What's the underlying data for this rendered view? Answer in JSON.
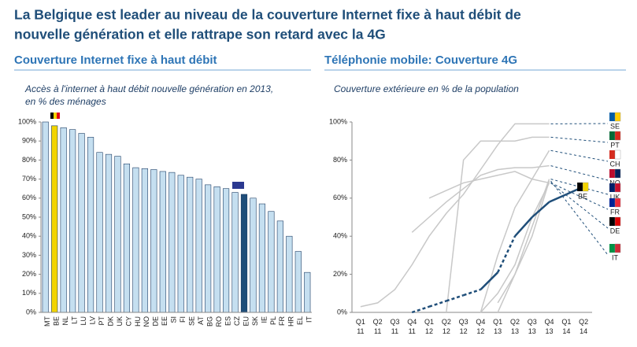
{
  "title": [
    "La Belgique est leader au niveau de la couverture Internet fixe à haut débit de",
    "nouvelle génération et elle rattrape son retard avec la 4G"
  ],
  "chart_data": [
    {
      "type": "bar",
      "title": "Couverture Internet fixe à haut débit",
      "subtitle": [
        "Accès à l'internet à haut débit nouvelle génération en 2013,",
        "en % des ménages"
      ],
      "categories": [
        "MT",
        "BE",
        "NL",
        "LT",
        "LU",
        "LV",
        "PT",
        "DK",
        "UK",
        "CY",
        "HU",
        "NO",
        "DE",
        "EE",
        "SI",
        "FI",
        "SE",
        "AT",
        "BG",
        "RO",
        "ES",
        "CZ",
        "EU",
        "SK",
        "IE",
        "PL",
        "FR",
        "HR",
        "EL",
        "IT"
      ],
      "values": [
        100,
        98,
        97,
        96,
        94,
        92,
        84,
        83,
        82,
        78,
        76,
        75.5,
        75,
        74,
        73.5,
        72,
        71,
        70,
        67,
        66,
        65,
        63,
        62,
        60,
        57,
        53,
        48,
        40,
        32,
        21
      ],
      "color": "#c5dff0",
      "highlight": {
        "1": "#f2d400",
        "22": "#1f4e79"
      },
      "ylim": [
        0,
        100
      ],
      "yticks": [
        {
          "value": 0,
          "label": "0%"
        },
        {
          "value": 10,
          "label": "10%"
        },
        {
          "value": 20,
          "label": "20%"
        },
        {
          "value": 30,
          "label": "30%"
        },
        {
          "value": 40,
          "label": "40%"
        },
        {
          "value": 50,
          "label": "50%"
        },
        {
          "value": 60,
          "label": "60%"
        },
        {
          "value": 70,
          "label": "70%"
        },
        {
          "value": 80,
          "label": "80%"
        },
        {
          "value": 90,
          "label": "90%"
        },
        {
          "value": 100,
          "label": "100%"
        }
      ]
    },
    {
      "type": "line",
      "title": "Téléphonie mobile: Couverture 4G",
      "subtitle": [
        "Couverture extérieure en % de la population"
      ],
      "categories": [
        "Q1 11",
        "Q2 11",
        "Q3 11",
        "Q4 11",
        "Q1 12",
        "Q2 12",
        "Q3 12",
        "Q4 12",
        "Q1 13",
        "Q2 13",
        "Q3 13",
        "Q4 13",
        "Q1 14",
        "Q2 14"
      ],
      "series": [
        {
          "name": "SE",
          "color": "#c8c8c8",
          "values": [
            3,
            5,
            12,
            25,
            40,
            52,
            62,
            75,
            88,
            99,
            99,
            99,
            null,
            null
          ]
        },
        {
          "name": "PT",
          "color": "#c8c8c8",
          "values": [
            null,
            null,
            null,
            null,
            null,
            0,
            80,
            90,
            90,
            90,
            92,
            92,
            null,
            null
          ]
        },
        {
          "name": "CH",
          "color": "#c8c8c8",
          "values": [
            null,
            null,
            null,
            null,
            null,
            null,
            null,
            0,
            30,
            55,
            70,
            85,
            null,
            null
          ]
        },
        {
          "name": "NO",
          "color": "#c8c8c8",
          "values": [
            null,
            null,
            null,
            42,
            50,
            58,
            65,
            72,
            75,
            76,
            76,
            77,
            null,
            null
          ]
        },
        {
          "name": "UK",
          "color": "#c8c8c8",
          "values": [
            null,
            null,
            null,
            null,
            null,
            null,
            null,
            null,
            0,
            20,
            45,
            70,
            null,
            null
          ]
        },
        {
          "name": "FR",
          "color": "#c8c8c8",
          "values": [
            null,
            null,
            null,
            null,
            null,
            null,
            null,
            0,
            10,
            25,
            50,
            68,
            null,
            null
          ]
        },
        {
          "name": "DE",
          "color": "#c8c8c8",
          "values": [
            null,
            null,
            null,
            null,
            60,
            64,
            68,
            70,
            72,
            74,
            70,
            68,
            null,
            null
          ]
        },
        {
          "name": "IT",
          "color": "#c8c8c8",
          "values": [
            null,
            null,
            null,
            null,
            null,
            null,
            null,
            null,
            5,
            20,
            40,
            69,
            null,
            null
          ]
        },
        {
          "name": "BE",
          "color": "#1f4e79",
          "values": [
            null,
            null,
            null,
            0,
            3,
            6,
            9,
            12,
            21,
            40,
            50,
            58,
            62,
            66
          ],
          "dashed_segments": [
            3,
            4,
            5,
            6,
            8
          ]
        }
      ],
      "ylim": [
        0,
        100
      ],
      "yticks": [
        {
          "value": 0,
          "label": "0%"
        },
        {
          "value": 20,
          "label": "20%"
        },
        {
          "value": 40,
          "label": "40%"
        },
        {
          "value": 60,
          "label": "60%"
        },
        {
          "value": 80,
          "label": "80%"
        },
        {
          "value": 100,
          "label": "100%"
        }
      ]
    }
  ]
}
